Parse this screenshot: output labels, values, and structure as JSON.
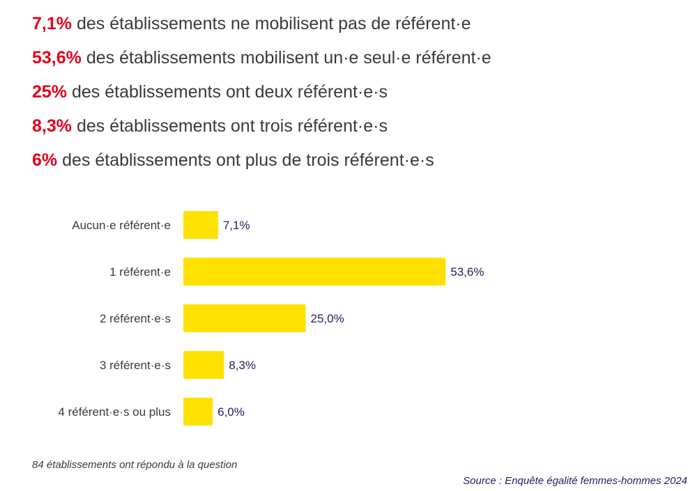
{
  "statements": [
    {
      "pct": "7,1%",
      "text": "des établissements ne mobilisent pas de référent·e"
    },
    {
      "pct": "53,6%",
      "text": "des établissements mobilisent un·e seul·e référent·e"
    },
    {
      "pct": "25%",
      "text": "des établissements ont deux référent·e·s"
    },
    {
      "pct": "8,3%",
      "text": "des établissements ont trois référent·e·s"
    },
    {
      "pct": "6%",
      "text": "des établissements ont plus de trois référent·e·s"
    }
  ],
  "chart_data": {
    "type": "bar",
    "orientation": "horizontal",
    "categories": [
      "Aucun·e référent·e",
      "1 référent·e",
      "2 référent·e·s",
      "3 référent·e·s",
      "4 référent·e·s ou plus"
    ],
    "values": [
      7.1,
      53.6,
      25.0,
      8.3,
      6.0
    ],
    "value_labels": [
      "7,1%",
      "53,6%",
      "25,0%",
      "8,3%",
      "6,0%"
    ],
    "title": "",
    "xlabel": "",
    "ylabel": "",
    "grid": false,
    "bar_color": "#ffe100",
    "label_color": "#1f1f5c"
  },
  "note": "84 établissements ont répondu à la question",
  "source": "Source : Enquête égalité femmes-hommes 2024",
  "colors": {
    "highlight": "#e3001b",
    "text": "#3a3a3a"
  }
}
